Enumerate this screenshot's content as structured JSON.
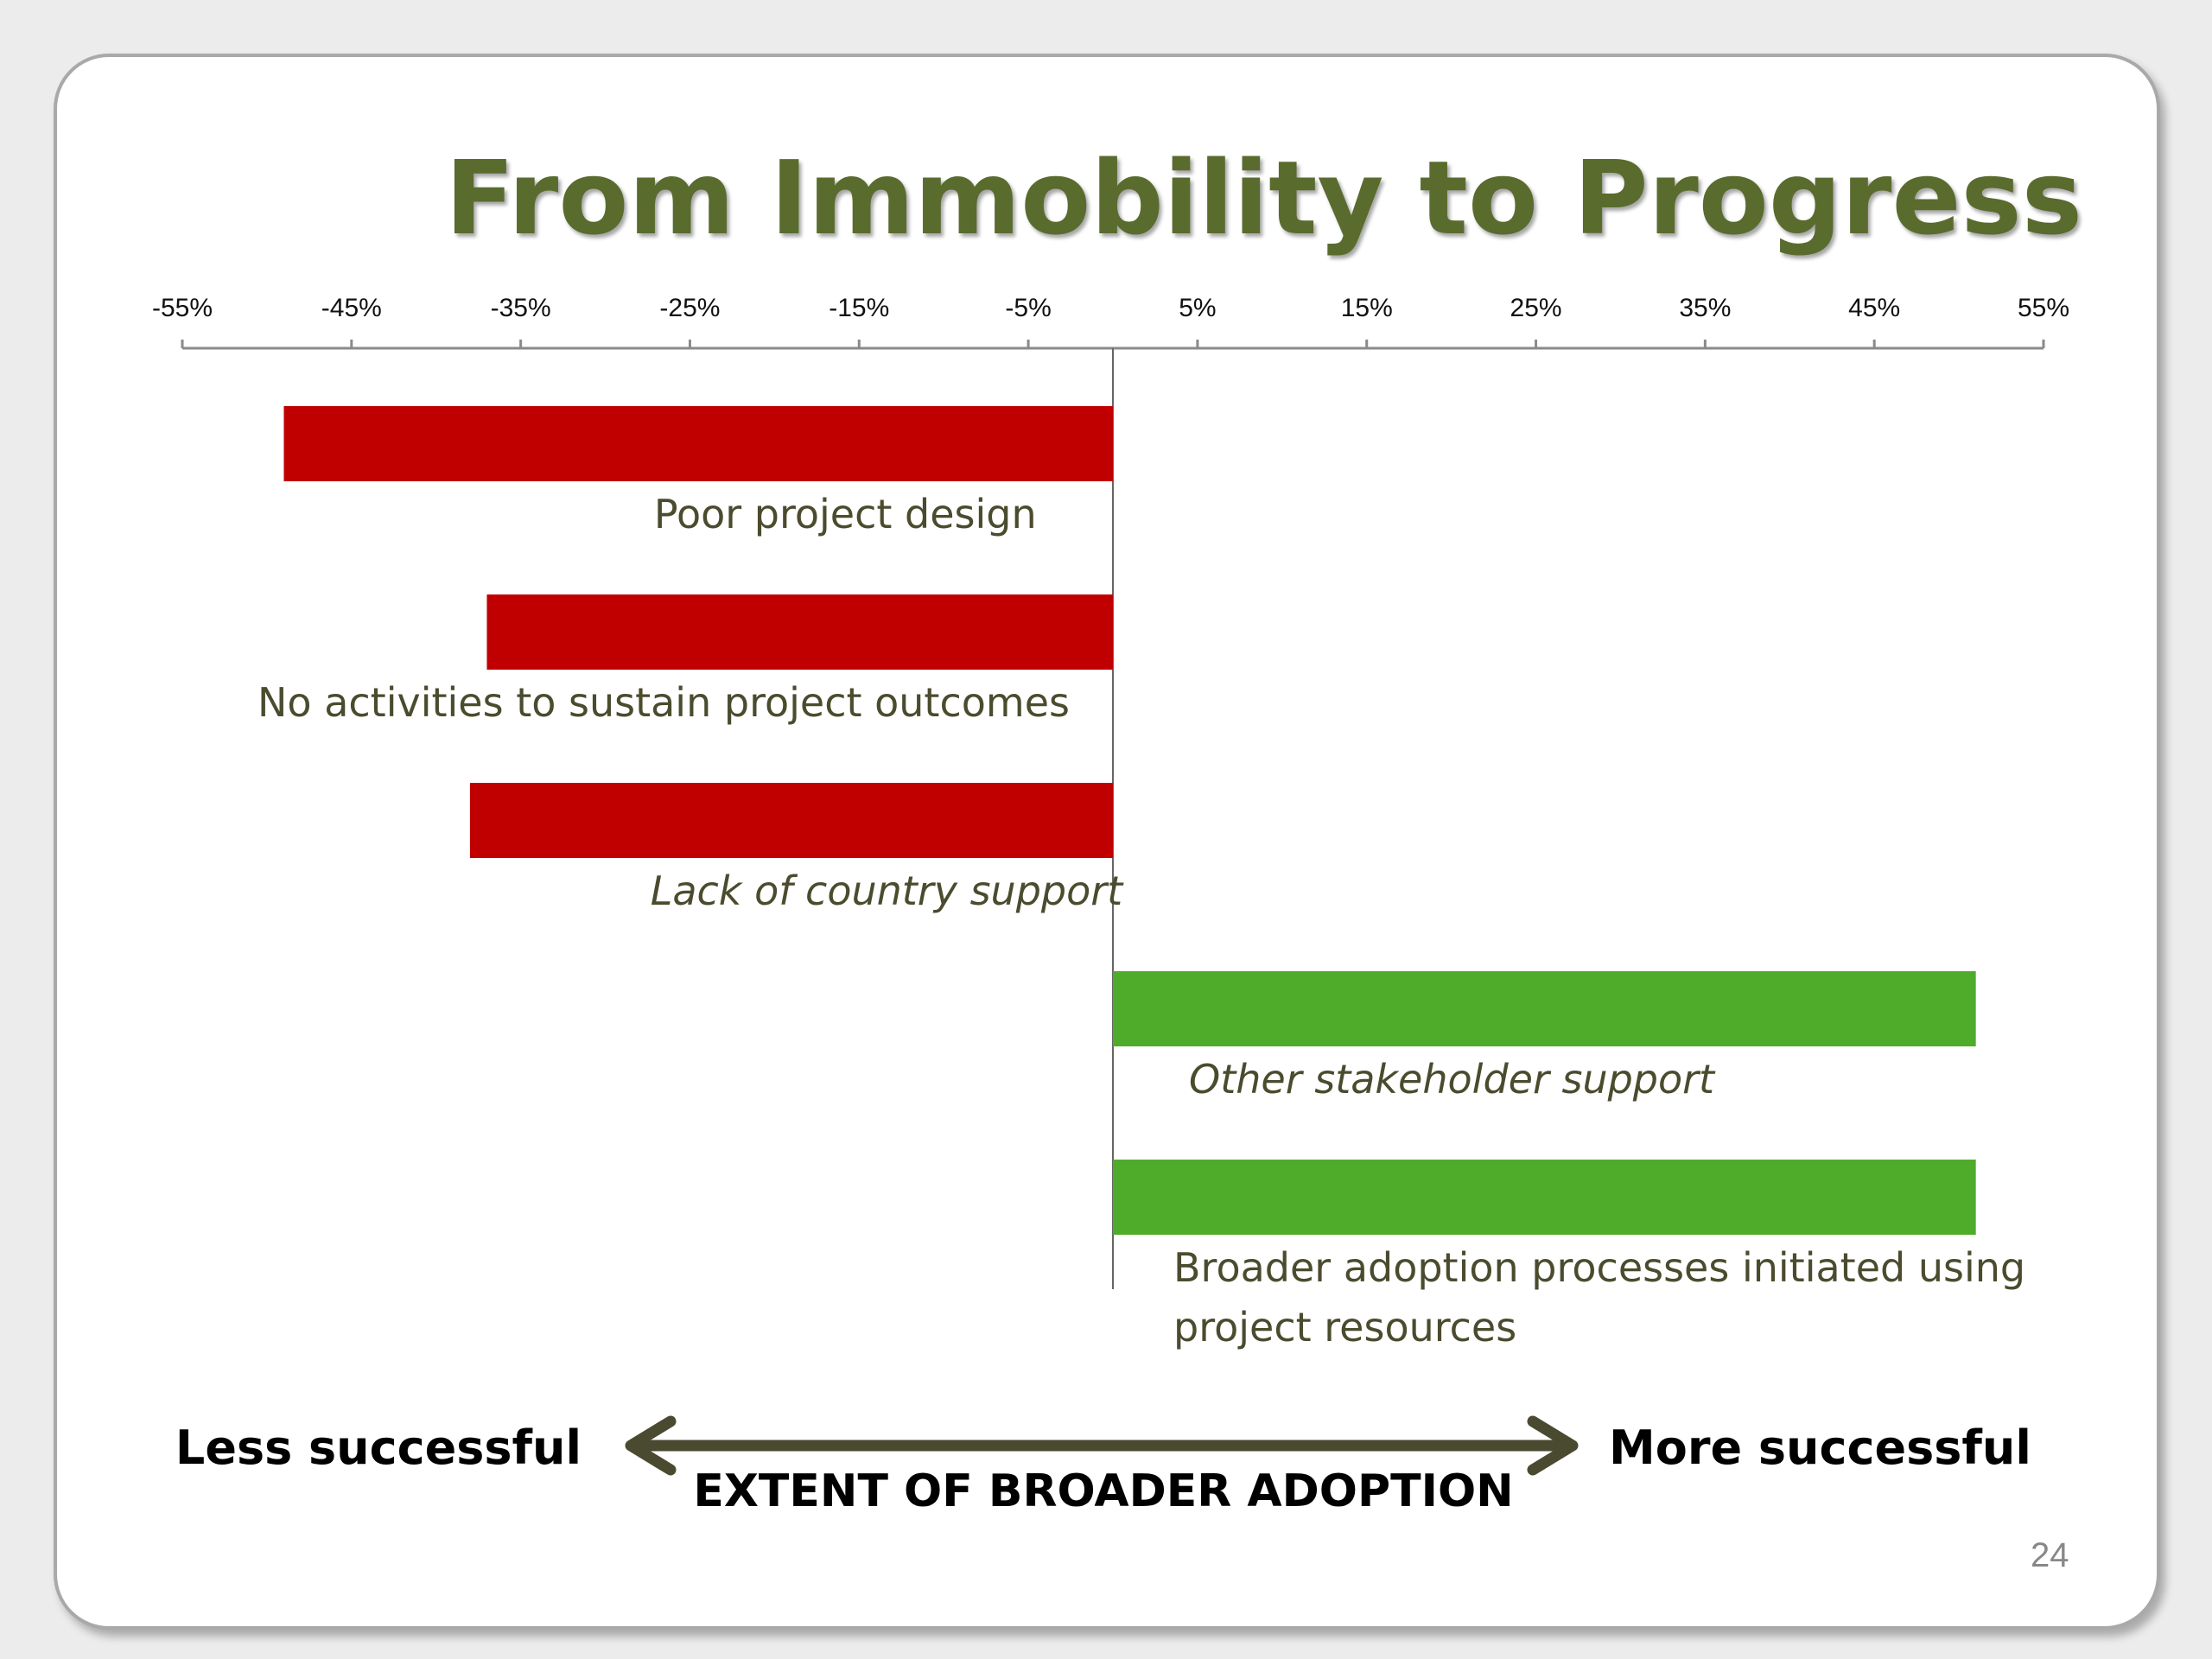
{
  "slide": {
    "title": "From Immobility to Progress",
    "page_number": "24"
  },
  "colors": {
    "title": "#5a6b2e",
    "negative_bar": "#c00000",
    "positive_bar": "#4eac2a",
    "label": "#4b4b2e",
    "arrow": "#4a4a30"
  },
  "chart_data": {
    "type": "bar",
    "orientation": "horizontal",
    "x_ticks": [
      "-55%",
      "-45%",
      "-35%",
      "-25%",
      "-15%",
      "-5%",
      "5%",
      "15%",
      "25%",
      "35%",
      "45%",
      "55%"
    ],
    "xlim": [
      -55,
      55
    ],
    "x_axis_position": "top",
    "grid": false,
    "categories": [
      "Poor project design",
      "No activities to sustain project outcomes",
      "Lack of country support",
      "Other stakeholder support",
      "Broader adoption processes initiated using project resources"
    ],
    "values": [
      -49,
      -37,
      -38,
      51,
      51
    ],
    "label_lines": [
      [
        "Poor project design"
      ],
      [
        "No activities to sustain project outcomes"
      ],
      [
        "Lack of country support"
      ],
      [
        "Other stakeholder support"
      ],
      [
        "Broader adoption processes initiated using",
        "project resources"
      ]
    ],
    "label_italic": [
      false,
      false,
      true,
      true,
      false
    ],
    "axis_left_label": "Less successful",
    "axis_right_label": "More successful",
    "axis_title": "EXTENT OF BROADER ADOPTION"
  }
}
